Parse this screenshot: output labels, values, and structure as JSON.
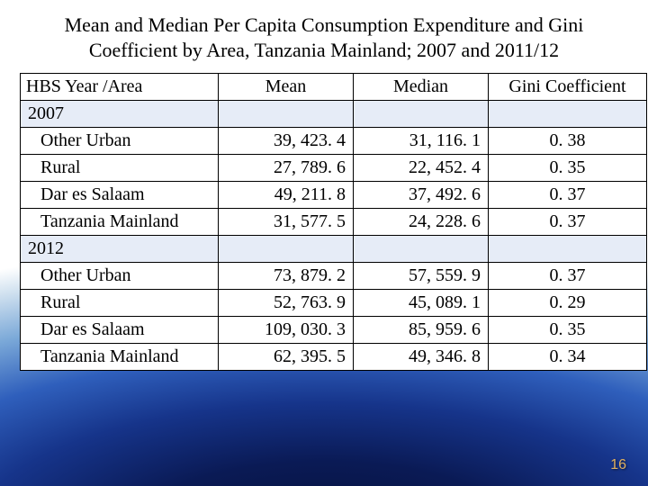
{
  "title": "Mean and Median Per Capita Consumption Expenditure and Gini Coefficient by Area, Tanzania Mainland; 2007 and 2011/12",
  "page_number": "16",
  "colors": {
    "section_row_bg": "#e6ecf7",
    "data_row_bg": "#ffffff",
    "border": "#000000",
    "page_number": "#e0b060"
  },
  "table": {
    "columns": [
      {
        "key": "area",
        "label": "HBS Year /Area",
        "align": "left"
      },
      {
        "key": "mean",
        "label": "Mean",
        "align": "right"
      },
      {
        "key": "median",
        "label": "Median",
        "align": "right"
      },
      {
        "key": "gini",
        "label": "Gini Coefficient",
        "align": "center"
      }
    ],
    "rows": [
      {
        "type": "section",
        "area": "2007"
      },
      {
        "type": "data",
        "area": "Other Urban",
        "mean": "39, 423. 4",
        "median": "31, 116. 1",
        "gini": "0. 38"
      },
      {
        "type": "data",
        "area": "Rural",
        "mean": "27, 789. 6",
        "median": "22, 452. 4",
        "gini": "0. 35"
      },
      {
        "type": "data",
        "area": "Dar es Salaam",
        "mean": "49, 211. 8",
        "median": "37, 492. 6",
        "gini": "0. 37"
      },
      {
        "type": "data",
        "area": "Tanzania Mainland",
        "mean": "31, 577. 5",
        "median": "24, 228. 6",
        "gini": "0. 37"
      },
      {
        "type": "section",
        "area": "2012"
      },
      {
        "type": "data",
        "area": "Other Urban",
        "mean": "73, 879. 2",
        "median": "57, 559. 9",
        "gini": "0. 37"
      },
      {
        "type": "data",
        "area": "Rural",
        "mean": "52, 763. 9",
        "median": "45, 089. 1",
        "gini": "0. 29"
      },
      {
        "type": "data",
        "area": "Dar es Salaam",
        "mean": "109, 030. 3",
        "median": "85, 959. 6",
        "gini": "0. 35"
      },
      {
        "type": "data",
        "area": "Tanzania Mainland",
        "mean": "62, 395. 5",
        "median": "49, 346. 8",
        "gini": "0. 34"
      }
    ]
  }
}
